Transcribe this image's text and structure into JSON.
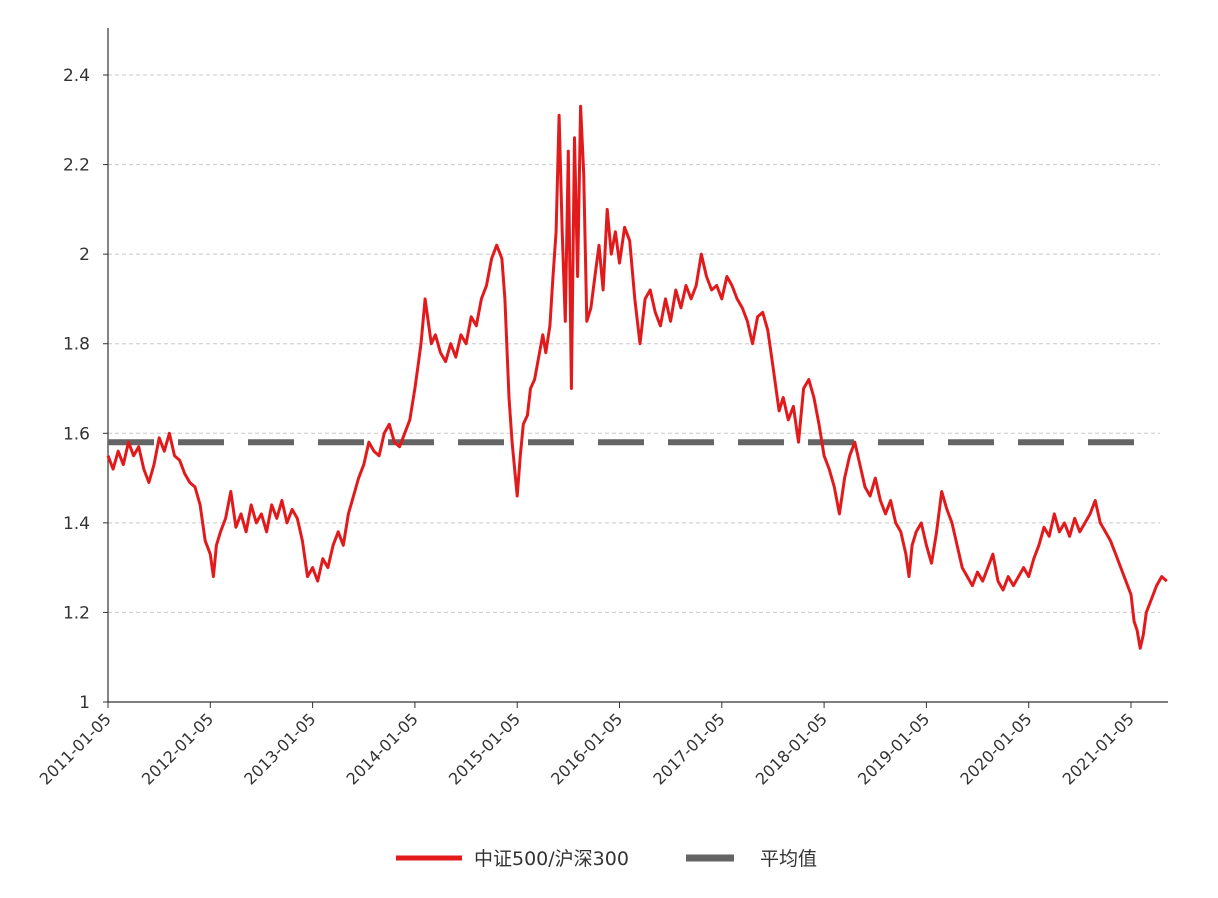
{
  "chart_data": {
    "type": "line",
    "title": "",
    "xlabel": "",
    "ylabel": "",
    "ylim": [
      1,
      2.45
    ],
    "y_ticks": [
      "1",
      "1.2",
      "1.4",
      "1.6",
      "1.8",
      "2",
      "2.2",
      "2.4"
    ],
    "grid": "horizontal dashed",
    "legend_position": "bottom-center",
    "x_tick_labels": [
      "2011-01-05",
      "2012-01-05",
      "2013-01-05",
      "2014-01-05",
      "2015-01-05",
      "2016-01-05",
      "2017-01-05",
      "2018-01-05",
      "2019-01-05",
      "2020-01-05",
      "2021-01-05"
    ],
    "x_range": [
      2011.0,
      2021.35
    ],
    "series": [
      {
        "name": "中证500/沪深300",
        "color": "#e31a1c",
        "style": "solid",
        "points": [
          [
            2011.0,
            1.55
          ],
          [
            2011.05,
            1.52
          ],
          [
            2011.1,
            1.56
          ],
          [
            2011.15,
            1.53
          ],
          [
            2011.2,
            1.58
          ],
          [
            2011.25,
            1.55
          ],
          [
            2011.3,
            1.57
          ],
          [
            2011.35,
            1.52
          ],
          [
            2011.4,
            1.49
          ],
          [
            2011.45,
            1.53
          ],
          [
            2011.5,
            1.59
          ],
          [
            2011.55,
            1.56
          ],
          [
            2011.6,
            1.6
          ],
          [
            2011.65,
            1.55
          ],
          [
            2011.7,
            1.54
          ],
          [
            2011.75,
            1.51
          ],
          [
            2011.8,
            1.49
          ],
          [
            2011.85,
            1.48
          ],
          [
            2011.9,
            1.44
          ],
          [
            2011.95,
            1.36
          ],
          [
            2012.0,
            1.33
          ],
          [
            2012.03,
            1.28
          ],
          [
            2012.06,
            1.35
          ],
          [
            2012.1,
            1.38
          ],
          [
            2012.15,
            1.41
          ],
          [
            2012.2,
            1.47
          ],
          [
            2012.25,
            1.39
          ],
          [
            2012.3,
            1.42
          ],
          [
            2012.35,
            1.38
          ],
          [
            2012.4,
            1.44
          ],
          [
            2012.45,
            1.4
          ],
          [
            2012.5,
            1.42
          ],
          [
            2012.55,
            1.38
          ],
          [
            2012.6,
            1.44
          ],
          [
            2012.65,
            1.41
          ],
          [
            2012.7,
            1.45
          ],
          [
            2012.75,
            1.4
          ],
          [
            2012.8,
            1.43
          ],
          [
            2012.85,
            1.41
          ],
          [
            2012.9,
            1.36
          ],
          [
            2012.95,
            1.28
          ],
          [
            2013.0,
            1.3
          ],
          [
            2013.05,
            1.27
          ],
          [
            2013.1,
            1.32
          ],
          [
            2013.15,
            1.3
          ],
          [
            2013.2,
            1.35
          ],
          [
            2013.25,
            1.38
          ],
          [
            2013.3,
            1.35
          ],
          [
            2013.35,
            1.42
          ],
          [
            2013.4,
            1.46
          ],
          [
            2013.45,
            1.5
          ],
          [
            2013.5,
            1.53
          ],
          [
            2013.55,
            1.58
          ],
          [
            2013.6,
            1.56
          ],
          [
            2013.65,
            1.55
          ],
          [
            2013.7,
            1.6
          ],
          [
            2013.75,
            1.62
          ],
          [
            2013.8,
            1.58
          ],
          [
            2013.85,
            1.57
          ],
          [
            2013.9,
            1.6
          ],
          [
            2013.95,
            1.63
          ],
          [
            2014.0,
            1.7
          ],
          [
            2014.03,
            1.75
          ],
          [
            2014.06,
            1.8
          ],
          [
            2014.1,
            1.9
          ],
          [
            2014.13,
            1.85
          ],
          [
            2014.16,
            1.8
          ],
          [
            2014.2,
            1.82
          ],
          [
            2014.25,
            1.78
          ],
          [
            2014.3,
            1.76
          ],
          [
            2014.35,
            1.8
          ],
          [
            2014.4,
            1.77
          ],
          [
            2014.45,
            1.82
          ],
          [
            2014.5,
            1.8
          ],
          [
            2014.55,
            1.86
          ],
          [
            2014.6,
            1.84
          ],
          [
            2014.65,
            1.9
          ],
          [
            2014.7,
            1.93
          ],
          [
            2014.75,
            1.99
          ],
          [
            2014.8,
            2.02
          ],
          [
            2014.85,
            1.99
          ],
          [
            2014.88,
            1.9
          ],
          [
            2014.92,
            1.68
          ],
          [
            2014.95,
            1.58
          ],
          [
            2015.0,
            1.46
          ],
          [
            2015.03,
            1.55
          ],
          [
            2015.06,
            1.62
          ],
          [
            2015.1,
            1.64
          ],
          [
            2015.13,
            1.7
          ],
          [
            2015.17,
            1.72
          ],
          [
            2015.21,
            1.77
          ],
          [
            2015.25,
            1.82
          ],
          [
            2015.28,
            1.78
          ],
          [
            2015.32,
            1.84
          ],
          [
            2015.35,
            1.95
          ],
          [
            2015.38,
            2.05
          ],
          [
            2015.41,
            2.31
          ],
          [
            2015.44,
            2.05
          ],
          [
            2015.47,
            1.85
          ],
          [
            2015.5,
            2.23
          ],
          [
            2015.53,
            1.7
          ],
          [
            2015.56,
            2.26
          ],
          [
            2015.59,
            1.95
          ],
          [
            2015.62,
            2.33
          ],
          [
            2015.65,
            2.18
          ],
          [
            2015.68,
            1.85
          ],
          [
            2015.72,
            1.88
          ],
          [
            2015.76,
            1.95
          ],
          [
            2015.8,
            2.02
          ],
          [
            2015.84,
            1.92
          ],
          [
            2015.88,
            2.1
          ],
          [
            2015.92,
            2.0
          ],
          [
            2015.96,
            2.05
          ],
          [
            2016.0,
            1.98
          ],
          [
            2016.05,
            2.06
          ],
          [
            2016.1,
            2.03
          ],
          [
            2016.15,
            1.9
          ],
          [
            2016.2,
            1.8
          ],
          [
            2016.25,
            1.9
          ],
          [
            2016.3,
            1.92
          ],
          [
            2016.35,
            1.87
          ],
          [
            2016.4,
            1.84
          ],
          [
            2016.45,
            1.9
          ],
          [
            2016.5,
            1.85
          ],
          [
            2016.55,
            1.92
          ],
          [
            2016.6,
            1.88
          ],
          [
            2016.65,
            1.93
          ],
          [
            2016.7,
            1.9
          ],
          [
            2016.75,
            1.93
          ],
          [
            2016.8,
            2.0
          ],
          [
            2016.85,
            1.95
          ],
          [
            2016.9,
            1.92
          ],
          [
            2016.95,
            1.93
          ],
          [
            2017.0,
            1.9
          ],
          [
            2017.05,
            1.95
          ],
          [
            2017.1,
            1.93
          ],
          [
            2017.15,
            1.9
          ],
          [
            2017.2,
            1.88
          ],
          [
            2017.25,
            1.85
          ],
          [
            2017.3,
            1.8
          ],
          [
            2017.35,
            1.86
          ],
          [
            2017.4,
            1.87
          ],
          [
            2017.45,
            1.83
          ],
          [
            2017.5,
            1.75
          ],
          [
            2017.53,
            1.7
          ],
          [
            2017.56,
            1.65
          ],
          [
            2017.6,
            1.68
          ],
          [
            2017.65,
            1.63
          ],
          [
            2017.7,
            1.66
          ],
          [
            2017.75,
            1.58
          ],
          [
            2017.8,
            1.7
          ],
          [
            2017.85,
            1.72
          ],
          [
            2017.9,
            1.68
          ],
          [
            2017.95,
            1.62
          ],
          [
            2018.0,
            1.55
          ],
          [
            2018.05,
            1.52
          ],
          [
            2018.1,
            1.48
          ],
          [
            2018.15,
            1.42
          ],
          [
            2018.2,
            1.5
          ],
          [
            2018.25,
            1.55
          ],
          [
            2018.3,
            1.58
          ],
          [
            2018.35,
            1.53
          ],
          [
            2018.4,
            1.48
          ],
          [
            2018.45,
            1.46
          ],
          [
            2018.5,
            1.5
          ],
          [
            2018.55,
            1.45
          ],
          [
            2018.6,
            1.42
          ],
          [
            2018.65,
            1.45
          ],
          [
            2018.7,
            1.4
          ],
          [
            2018.75,
            1.38
          ],
          [
            2018.8,
            1.33
          ],
          [
            2018.83,
            1.28
          ],
          [
            2018.86,
            1.35
          ],
          [
            2018.9,
            1.38
          ],
          [
            2018.95,
            1.4
          ],
          [
            2019.0,
            1.35
          ],
          [
            2019.05,
            1.31
          ],
          [
            2019.1,
            1.38
          ],
          [
            2019.15,
            1.47
          ],
          [
            2019.2,
            1.43
          ],
          [
            2019.25,
            1.4
          ],
          [
            2019.3,
            1.35
          ],
          [
            2019.35,
            1.3
          ],
          [
            2019.4,
            1.28
          ],
          [
            2019.45,
            1.26
          ],
          [
            2019.5,
            1.29
          ],
          [
            2019.55,
            1.27
          ],
          [
            2019.6,
            1.3
          ],
          [
            2019.65,
            1.33
          ],
          [
            2019.7,
            1.27
          ],
          [
            2019.75,
            1.25
          ],
          [
            2019.8,
            1.28
          ],
          [
            2019.85,
            1.26
          ],
          [
            2019.9,
            1.28
          ],
          [
            2019.95,
            1.3
          ],
          [
            2020.0,
            1.28
          ],
          [
            2020.05,
            1.32
          ],
          [
            2020.1,
            1.35
          ],
          [
            2020.15,
            1.39
          ],
          [
            2020.2,
            1.37
          ],
          [
            2020.25,
            1.42
          ],
          [
            2020.3,
            1.38
          ],
          [
            2020.35,
            1.4
          ],
          [
            2020.4,
            1.37
          ],
          [
            2020.45,
            1.41
          ],
          [
            2020.5,
            1.38
          ],
          [
            2020.55,
            1.4
          ],
          [
            2020.6,
            1.42
          ],
          [
            2020.65,
            1.45
          ],
          [
            2020.7,
            1.4
          ],
          [
            2020.75,
            1.38
          ],
          [
            2020.8,
            1.36
          ],
          [
            2020.85,
            1.33
          ],
          [
            2020.9,
            1.3
          ],
          [
            2020.95,
            1.27
          ],
          [
            2021.0,
            1.24
          ],
          [
            2021.03,
            1.18
          ],
          [
            2021.06,
            1.16
          ],
          [
            2021.09,
            1.12
          ],
          [
            2021.12,
            1.15
          ],
          [
            2021.15,
            1.2
          ],
          [
            2021.2,
            1.23
          ],
          [
            2021.25,
            1.26
          ],
          [
            2021.3,
            1.28
          ],
          [
            2021.35,
            1.27
          ]
        ]
      },
      {
        "name": "平均值",
        "color": "#646464",
        "style": "dashed",
        "points": [
          [
            2011.0,
            1.58
          ],
          [
            2021.1,
            1.58
          ]
        ]
      }
    ]
  }
}
